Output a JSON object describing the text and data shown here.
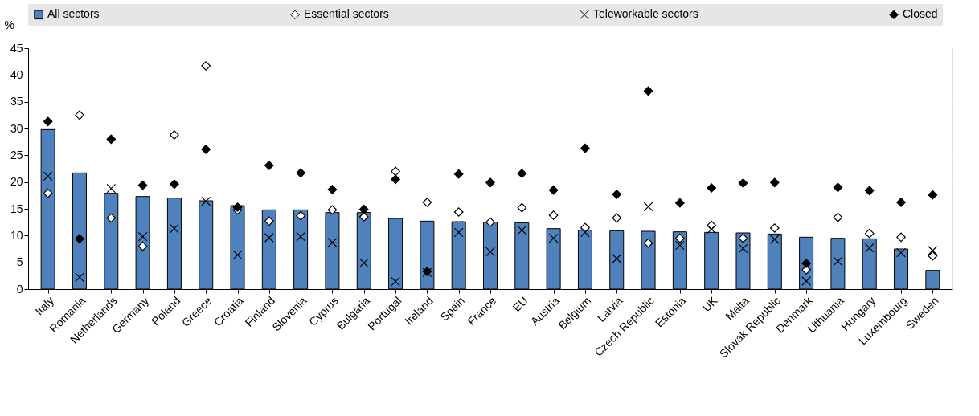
{
  "chart_data": {
    "type": "bar",
    "ylabel": "%",
    "categories": [
      "Italy",
      "Romania",
      "Netherlands",
      "Germany",
      "Poland",
      "Greece",
      "Croatia",
      "Finland",
      "Slovenia",
      "Cyprus",
      "Bulgaria",
      "Portugal",
      "Ireland",
      "Spain",
      "France",
      "EU",
      "Austria",
      "Belgium",
      "Latvia",
      "Czech Republic",
      "Estonia",
      "UK",
      "Malta",
      "Slovak Republic",
      "Denmark",
      "Lithuania",
      "Hungary",
      "Luxembourg",
      "Sweden"
    ],
    "series": [
      {
        "name": "All sectors",
        "color": "#4f81bd",
        "values": [
          29.8,
          21.7,
          17.9,
          17.3,
          17.0,
          16.5,
          15.6,
          14.8,
          14.8,
          14.3,
          14.3,
          13.2,
          12.7,
          12.6,
          12.5,
          12.4,
          11.3,
          11.0,
          10.9,
          10.8,
          10.7,
          10.6,
          10.5,
          10.3,
          9.7,
          9.5,
          9.4,
          7.5,
          3.5
        ]
      },
      {
        "name": "Essential sectors",
        "type": "scatter",
        "marker": "diamond",
        "color": "#ffffff",
        "values": [
          17.9,
          32.5,
          13.3,
          8.0,
          28.8,
          41.7,
          14.8,
          12.7,
          13.7,
          14.8,
          13.5,
          22.0,
          16.2,
          14.4,
          12.5,
          15.2,
          13.8,
          11.5,
          13.3,
          8.6,
          9.5,
          11.9,
          9.5,
          11.4,
          3.6,
          13.4,
          10.4,
          9.7,
          6.2
        ]
      },
      {
        "name": "Teleworkable sectors",
        "type": "scatter",
        "marker": "cross",
        "color": "#000000",
        "values": [
          21.1,
          2.2,
          18.8,
          9.8,
          11.3,
          16.4,
          6.4,
          9.6,
          9.8,
          8.7,
          4.9,
          1.4,
          3.1,
          10.6,
          7.0,
          11.0,
          9.5,
          10.6,
          5.7,
          15.4,
          8.2,
          11.2,
          7.6,
          9.3,
          1.5,
          5.2,
          7.7,
          6.8,
          7.2
        ]
      },
      {
        "name": "Closed",
        "type": "scatter",
        "marker": "diamond",
        "color": "#000000",
        "values": [
          31.3,
          9.4,
          28.0,
          19.4,
          19.6,
          26.1,
          15.3,
          23.1,
          21.7,
          18.6,
          14.9,
          20.5,
          3.3,
          21.5,
          19.9,
          21.6,
          18.5,
          26.3,
          17.7,
          37.0,
          16.1,
          18.9,
          19.8,
          19.9,
          4.8,
          19.0,
          18.4,
          16.2,
          17.6
        ]
      }
    ],
    "ylim": [
      0,
      45
    ],
    "yticks": [
      0,
      5,
      10,
      15,
      20,
      25,
      30,
      35,
      40,
      45
    ],
    "grid": true,
    "legend": "top"
  }
}
